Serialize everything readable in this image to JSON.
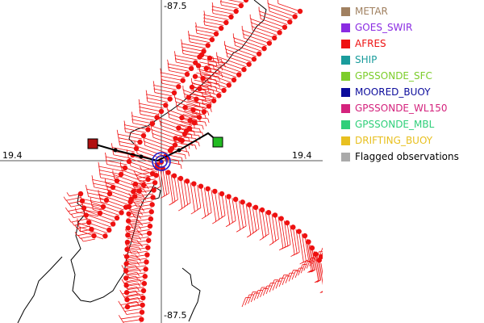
{
  "map": {
    "axis_labels": {
      "top": "-87.5",
      "bottom": "-87.5",
      "left": "19.4",
      "right": "19.4"
    },
    "colors": {
      "obs": "#ee1111",
      "coast": "#000000",
      "axis": "#555555",
      "station_start": "#b01010",
      "station_end": "#22bb22",
      "storm_center": "#2222cc",
      "track": "#000000"
    }
  },
  "legend": {
    "items": [
      {
        "label": "METAR",
        "color": "#a08060"
      },
      {
        "label": "GOES_SWIR",
        "color": "#8a2be2"
      },
      {
        "label": "AFRES",
        "color": "#ee1111"
      },
      {
        "label": "SHIP",
        "color": "#1a9c9c"
      },
      {
        "label": "GPSSONDE_SFC",
        "color": "#7ccd2a"
      },
      {
        "label": "MOORED_BUOY",
        "color": "#0c0c9c"
      },
      {
        "label": "GPSSONDE_WL150",
        "color": "#d4237d"
      },
      {
        "label": "GPSSONDE_MBL",
        "color": "#2fcf7a"
      },
      {
        "label": "DRIFTING_BUOY",
        "color": "#e8c020"
      },
      {
        "label": "Flagged observations",
        "color": "#aaaaaa"
      }
    ]
  }
}
